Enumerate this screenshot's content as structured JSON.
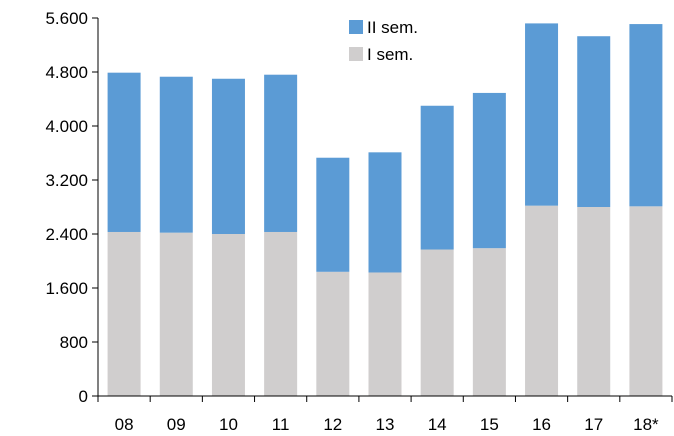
{
  "chart_data": {
    "type": "bar",
    "stacked": true,
    "categories": [
      "08",
      "09",
      "10",
      "11",
      "12",
      "13",
      "14",
      "15",
      "16",
      "17",
      "18*"
    ],
    "series": [
      {
        "name": "I sem.",
        "color": "#d0cece",
        "values": [
          2430,
          2420,
          2400,
          2430,
          1840,
          1830,
          2170,
          2190,
          2820,
          2800,
          2810
        ]
      },
      {
        "name": "II sem.",
        "color": "#5b9bd5",
        "values": [
          2360,
          2310,
          2300,
          2330,
          1690,
          1780,
          2130,
          2300,
          2700,
          2530,
          2700
        ]
      }
    ],
    "ylim": [
      0,
      5600
    ],
    "yticks": [
      0,
      800,
      1600,
      2400,
      3200,
      4000,
      4800,
      5600
    ],
    "ytick_labels": [
      "0",
      "800",
      "1.600",
      "2.400",
      "3.200",
      "4.000",
      "4.800",
      "5.600"
    ],
    "legend_position": "top-center",
    "legend_order": [
      "II sem.",
      "I sem."
    ],
    "grid": false,
    "title": "",
    "xlabel": "",
    "ylabel": ""
  }
}
